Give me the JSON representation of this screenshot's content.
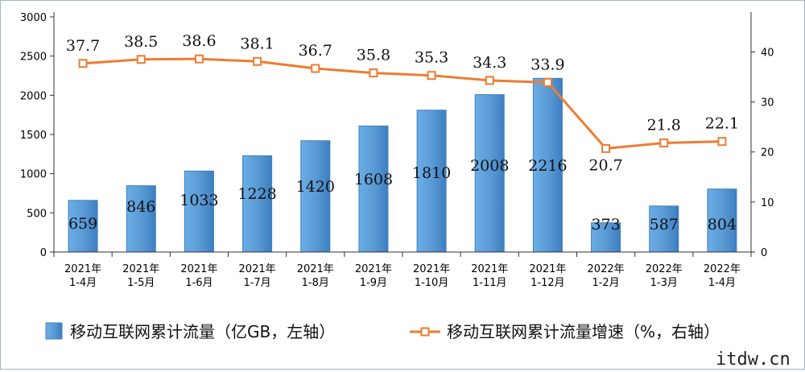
{
  "chart_data": {
    "type": "bar",
    "categories": [
      [
        "2021年",
        "1-4月"
      ],
      [
        "2021年",
        "1-5月"
      ],
      [
        "2021年",
        "1-6月"
      ],
      [
        "2021年",
        "1-7月"
      ],
      [
        "2021年",
        "1-8月"
      ],
      [
        "2021年",
        "1-9月"
      ],
      [
        "2021年",
        "1-10月"
      ],
      [
        "2021年",
        "1-11月"
      ],
      [
        "2021年",
        "1-12月"
      ],
      [
        "2022年",
        "1-2月"
      ],
      [
        "2022年",
        "1-3月"
      ],
      [
        "2022年",
        "1-4月"
      ]
    ],
    "series": [
      {
        "name": "移动互联网累计流量（亿GB，左轴）",
        "type": "bar",
        "axis": "left",
        "color": "#5b9bd5",
        "values": [
          659,
          846,
          1033,
          1228,
          1420,
          1608,
          1810,
          2008,
          2216,
          373,
          587,
          804
        ]
      },
      {
        "name": "移动互联网累计流量增速（%，右轴）",
        "type": "line",
        "axis": "right",
        "color": "#ed7d31",
        "values": [
          37.7,
          38.5,
          38.6,
          38.1,
          36.7,
          35.8,
          35.3,
          34.3,
          33.9,
          20.7,
          21.8,
          22.1
        ]
      }
    ],
    "y_left": {
      "min": 0,
      "max": 3000,
      "ticks": [
        0,
        500,
        1000,
        1500,
        2000,
        2500,
        3000
      ]
    },
    "y_right": {
      "min": 0,
      "max": 47,
      "ticks": [
        0,
        10,
        20,
        30,
        40
      ]
    },
    "legend_position": "bottom",
    "grid": false
  },
  "watermark": "itdw.cn"
}
